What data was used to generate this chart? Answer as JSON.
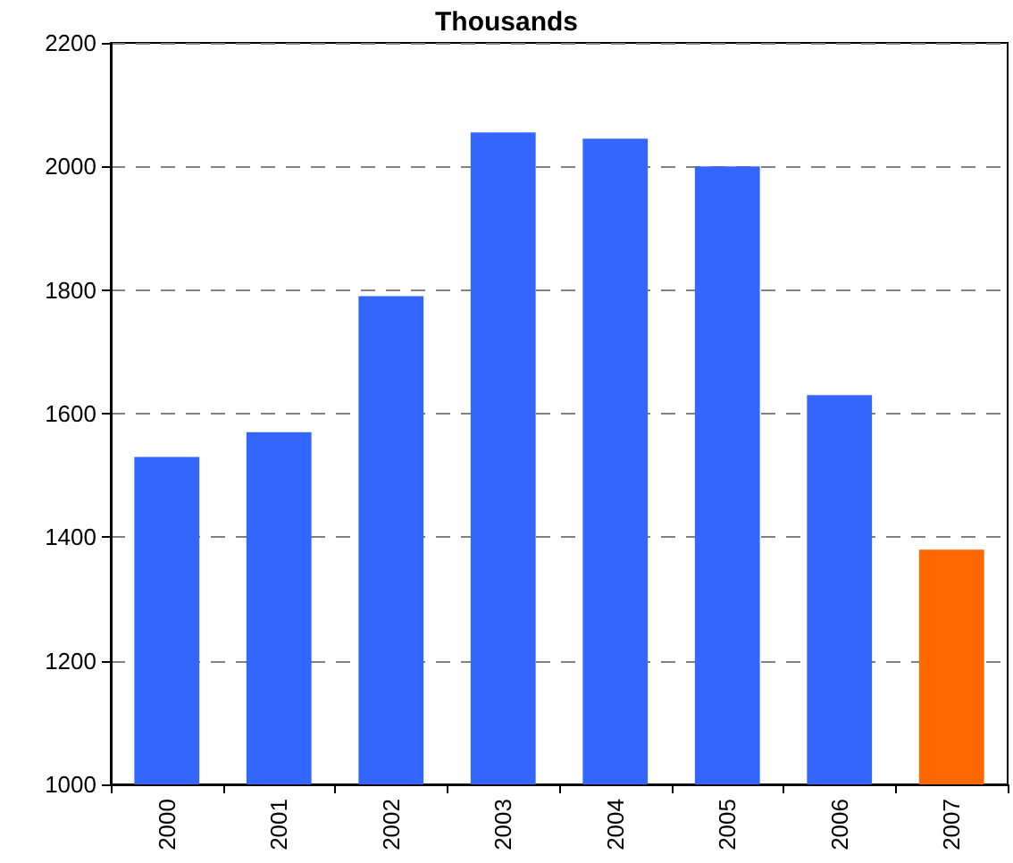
{
  "chart_data": {
    "type": "bar",
    "title": "Thousands",
    "categories": [
      "2000",
      "2001",
      "2002",
      "2003",
      "2004",
      "2005",
      "2006",
      "2007"
    ],
    "values": [
      1530,
      1570,
      1790,
      2055,
      2045,
      2000,
      1630,
      1380
    ],
    "colors": [
      "#3366ff",
      "#3366ff",
      "#3366ff",
      "#3366ff",
      "#3366ff",
      "#3366ff",
      "#3366ff",
      "#ff6600"
    ],
    "ylim": [
      1000,
      2200
    ],
    "yticks": [
      1000,
      1200,
      1400,
      1600,
      1800,
      2000,
      2200
    ],
    "grid": "y"
  }
}
